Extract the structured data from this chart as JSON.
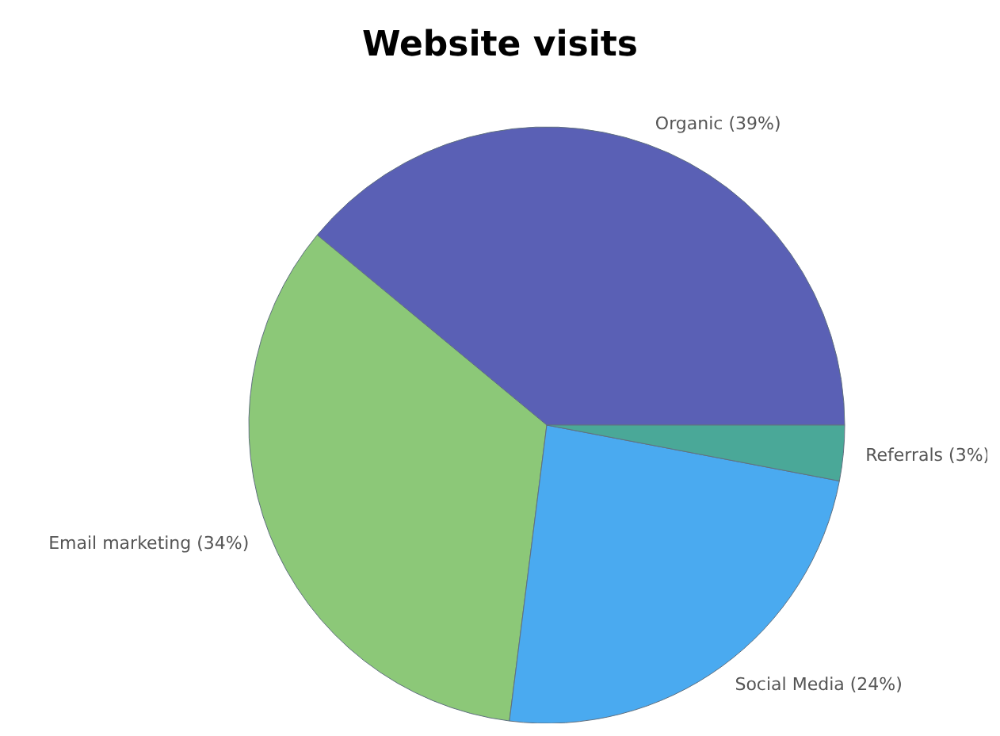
{
  "chart_data": {
    "type": "pie",
    "title": "Website visits",
    "categories": [
      "Organic (39%)",
      "Email marketing (34%)",
      "Social Media (24%)",
      "Referrals (3%)"
    ],
    "values": [
      39,
      34,
      24,
      3
    ],
    "colors": [
      "#5a60b5",
      "#8cc878",
      "#4aaaf0",
      "#4aa898"
    ],
    "legend": false
  }
}
